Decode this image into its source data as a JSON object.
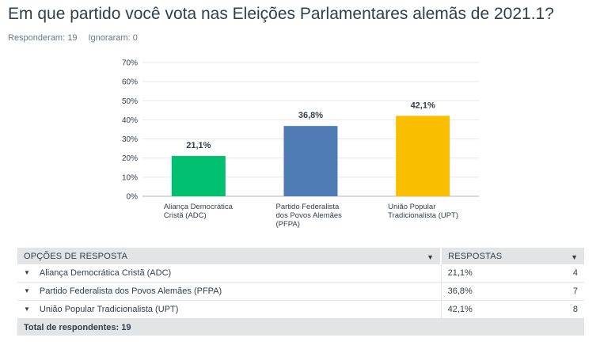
{
  "title": "Em que partido você vota nas Eleições Parlamentares alemãs de 2021.1?",
  "stats": {
    "answered": "Responderam: 19",
    "skipped": "Ignoraram: 0"
  },
  "chart_data": {
    "type": "bar",
    "categories": [
      [
        "Aliança Democrática",
        "Cristã (ADC)"
      ],
      [
        "Partido Federalista",
        "dos Povos Alemães",
        "(PFPA)"
      ],
      [
        "União Popular",
        "Tradicionalista (UPT)"
      ]
    ],
    "values": [
      21.1,
      36.8,
      42.1
    ],
    "data_labels": [
      "21,1%",
      "36,8%",
      "42,1%"
    ],
    "colors": [
      "#00bf6f",
      "#507cb6",
      "#f9be00"
    ],
    "yticks": [
      "0%",
      "10%",
      "20%",
      "30%",
      "40%",
      "50%",
      "60%",
      "70%"
    ],
    "ylim": [
      0,
      70
    ],
    "grid": true,
    "title": "",
    "xlabel": "",
    "ylabel": ""
  },
  "table": {
    "header_option": "Opções de resposta",
    "header_responses": "Respostas",
    "rows": [
      {
        "option": "Aliança Democrática Cristã (ADC)",
        "percent": "21,1%",
        "count": "4"
      },
      {
        "option": "Partido Federalista dos Povos Alemães (PFPA)",
        "percent": "36,8%",
        "count": "7"
      },
      {
        "option": "União Popular Tradicionalista (UPT)",
        "percent": "42,1%",
        "count": "8"
      }
    ],
    "total": "Total de respondentes: 19"
  },
  "icons": {
    "sort": "caret-down-icon",
    "row_toggle": "caret-down-icon"
  }
}
